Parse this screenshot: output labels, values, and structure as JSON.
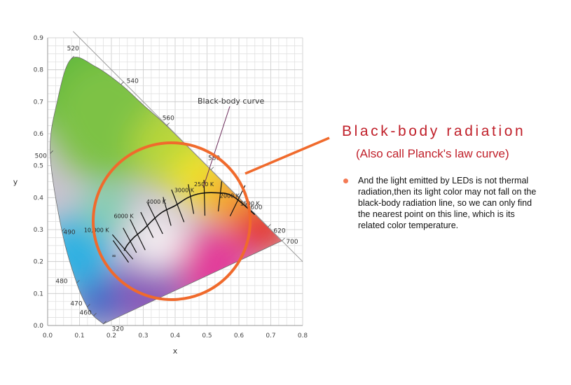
{
  "chart_data": {
    "type": "scatter",
    "xlabel": "x",
    "ylabel": "y",
    "xlim": [
      0,
      0.8
    ],
    "ylim": [
      0,
      0.9
    ],
    "x_ticks": [
      "0.0",
      "0.1",
      "0.2",
      "0.3",
      "0.4",
      "0.5",
      "0.6",
      "0.7",
      "0.8"
    ],
    "y_ticks": [
      "0.0",
      "0.1",
      "0.2",
      "0.3",
      "0.4",
      "0.5",
      "0.6",
      "0.7",
      "0.8",
      "0.9"
    ],
    "grid": true,
    "spectral_locus_labels": [
      {
        "label": "320",
        "x": 0.175,
        "y": 0.005
      },
      {
        "label": "460",
        "x": 0.144,
        "y": 0.03
      },
      {
        "label": "470",
        "x": 0.124,
        "y": 0.058
      },
      {
        "label": "480",
        "x": 0.091,
        "y": 0.133
      },
      {
        "label": "490",
        "x": 0.045,
        "y": 0.295
      },
      {
        "label": "500",
        "x": 0.008,
        "y": 0.538
      },
      {
        "label": "520",
        "x": 0.074,
        "y": 0.834
      },
      {
        "label": "540",
        "x": 0.23,
        "y": 0.754
      },
      {
        "label": "560",
        "x": 0.373,
        "y": 0.625
      },
      {
        "label": "580",
        "x": 0.512,
        "y": 0.487
      },
      {
        "label": "600",
        "x": 0.627,
        "y": 0.372
      },
      {
        "label": "620",
        "x": 0.691,
        "y": 0.308
      },
      {
        "label": "700",
        "x": 0.735,
        "y": 0.265
      }
    ],
    "black_body_curve": {
      "label": "Black-body curve",
      "points": [
        [
          0.24,
          0.234
        ],
        [
          0.25,
          0.252
        ],
        [
          0.27,
          0.275
        ],
        [
          0.3,
          0.3
        ],
        [
          0.33,
          0.33
        ],
        [
          0.36,
          0.355
        ],
        [
          0.4,
          0.375
        ],
        [
          0.44,
          0.4
        ],
        [
          0.48,
          0.413
        ],
        [
          0.53,
          0.415
        ],
        [
          0.58,
          0.405
        ],
        [
          0.65,
          0.347
        ]
      ],
      "temperature_labels": [
        {
          "label": "∞",
          "x": 0.24,
          "y": 0.234
        },
        {
          "label": "10,000 K",
          "x": 0.281,
          "y": 0.288
        },
        {
          "label": "6000 K",
          "x": 0.322,
          "y": 0.332
        },
        {
          "label": "4000 K",
          "x": 0.38,
          "y": 0.377
        },
        {
          "label": "3000 K",
          "x": 0.437,
          "y": 0.404
        },
        {
          "label": "2500 K",
          "x": 0.477,
          "y": 0.414
        },
        {
          "label": "2000 K",
          "x": 0.527,
          "y": 0.413
        },
        {
          "label": "1500 K",
          "x": 0.586,
          "y": 0.393
        }
      ]
    }
  },
  "panel": {
    "title": "Black-body radiation",
    "subtitle": "(Also call Planck's law curve)",
    "body": "And the light emitted by LEDs is not thermal radiation,then its light color may not fall on the black-body radiation line, so we can only find the nearest point on this line, which is its related color temperature."
  },
  "colors": {
    "accent": "#c0202a",
    "highlight_circle": "#f06a2c",
    "bullet": "#f47a55"
  }
}
